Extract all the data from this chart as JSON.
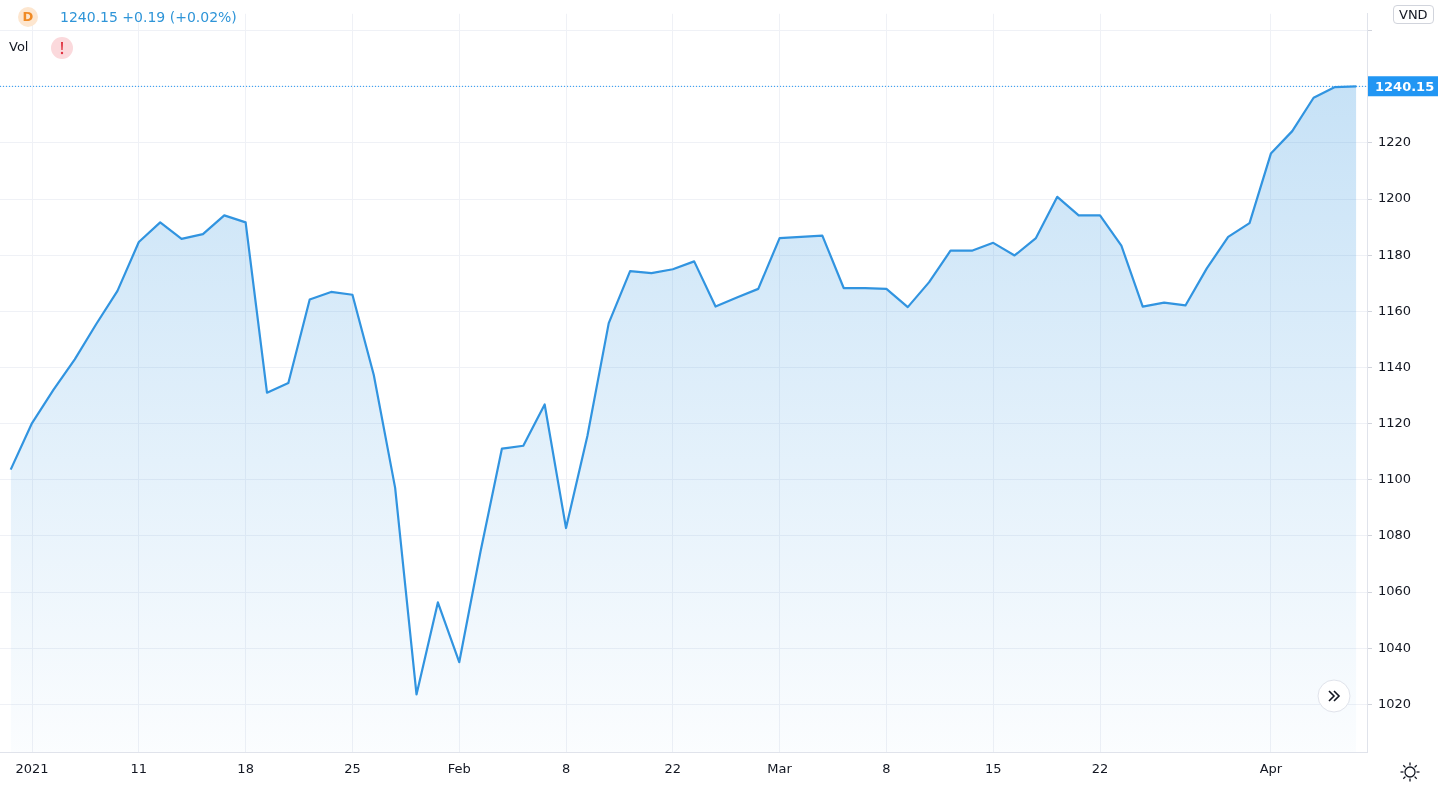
{
  "chart_data": {
    "type": "area",
    "categories": [
      null,
      "2021",
      null,
      null,
      null,
      null,
      "11",
      null,
      null,
      null,
      null,
      "18",
      null,
      null,
      null,
      null,
      "25",
      null,
      null,
      null,
      null,
      "Feb",
      null,
      null,
      null,
      null,
      "8",
      null,
      null,
      null,
      null,
      "22",
      null,
      null,
      null,
      null,
      "Mar",
      null,
      null,
      null,
      null,
      "8",
      null,
      null,
      null,
      null,
      "15",
      null,
      null,
      null,
      null,
      "22",
      null,
      null,
      null,
      null,
      null,
      null,
      null,
      "Apr",
      null,
      null,
      null,
      null
    ],
    "series": [
      {
        "color": "#3194e0",
        "values": [
          1103.6,
          1120.2,
          1132.0,
          1142.9,
          1155.4,
          1167.3,
          1184.7,
          1191.7,
          1185.8,
          1187.5,
          1194.2,
          1191.7,
          1131.0,
          1134.5,
          1164.2,
          1166.9,
          1165.9,
          1137.3,
          1097.1,
          1023.5,
          1056.3,
          1035.0,
          1074.5,
          1111.1,
          1112.1,
          1126.8,
          1082.8,
          1115.6,
          1155.8,
          1174.3,
          1173.6,
          1175.0,
          1177.8,
          1161.7,
          1164.9,
          1168.0,
          1186.1,
          1186.5,
          1187.0,
          1168.3,
          1168.3,
          1168.0,
          1161.5,
          1170.4,
          1181.6,
          1181.6,
          1184.4,
          1179.9,
          1186.1,
          1200.8,
          1194.2,
          1194.2,
          1183.4,
          1161.7,
          1163.1,
          1162.1,
          1175.3,
          1186.5,
          1191.4,
          1216.2,
          1224.2,
          1236.1,
          1239.9,
          1240.15
        ]
      }
    ],
    "ylim": [
      1003,
      1266
    ],
    "yticks": [
      1020,
      1040,
      1060,
      1080,
      1100,
      1120,
      1140,
      1160,
      1180,
      1200,
      1220,
      {
        "value": 1240,
        "label": null
      },
      {
        "value": 1260,
        "label": null
      }
    ],
    "grid": true,
    "ref_lines": [
      {
        "axis": "y",
        "value": 1240.15,
        "label": "1240.15",
        "color": "#2196f3",
        "line_style": "dotted"
      }
    ],
    "annotations": [
      "D",
      "1240.15 +0.19 (+0.02%)",
      "Vol",
      "VND"
    ]
  }
}
